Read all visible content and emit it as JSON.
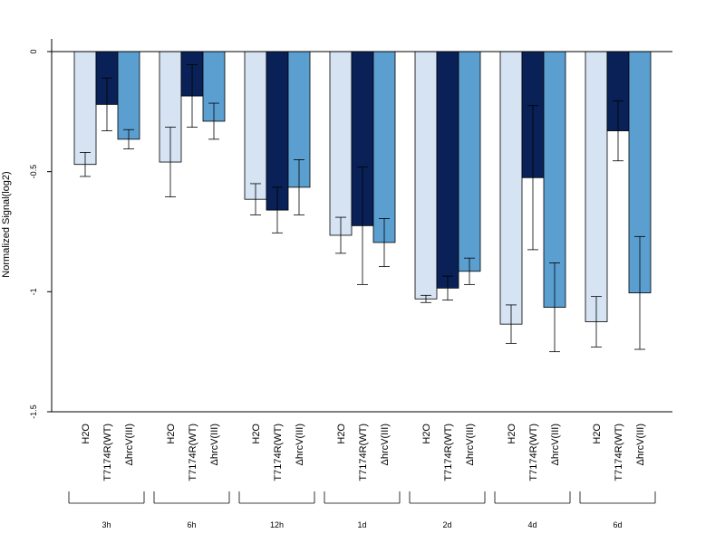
{
  "chart_data": {
    "type": "bar",
    "title": "",
    "xlabel": "",
    "ylabel": "Normalized Signal(log2)",
    "ylim": [
      -1.5,
      0.05
    ],
    "yticks": [
      0,
      -0.5,
      -1,
      -1.5
    ],
    "ytick_labels": [
      "0",
      "-0.5",
      "-1",
      "-1.5"
    ],
    "grid": false,
    "legend": "none",
    "bar_labels": [
      "H2O",
      "T7174R(WT)",
      "ΔhrcV(III)"
    ],
    "colors": [
      "#d5e3f3",
      "#0a2157",
      "#5b9fd1"
    ],
    "categories": [
      "3h",
      "6h",
      "12h",
      "1d",
      "2d",
      "4d",
      "6d"
    ],
    "series": [
      {
        "values": [
          -0.47,
          -0.46,
          -0.615,
          -0.765,
          -1.03,
          -1.135,
          -1.125
        ],
        "errors": [
          0.05,
          0.145,
          0.065,
          0.075,
          0.015,
          0.08,
          0.105
        ]
      },
      {
        "values": [
          -0.22,
          -0.185,
          -0.66,
          -0.725,
          -0.985,
          -0.525,
          -0.33
        ],
        "errors": [
          0.11,
          0.13,
          0.095,
          0.245,
          0.05,
          0.3,
          0.125
        ]
      },
      {
        "values": [
          -0.365,
          -0.29,
          -0.565,
          -0.795,
          -0.915,
          -1.065,
          -1.005
        ],
        "errors": [
          0.04,
          0.075,
          0.115,
          0.1,
          0.055,
          0.185,
          0.235
        ]
      }
    ]
  }
}
